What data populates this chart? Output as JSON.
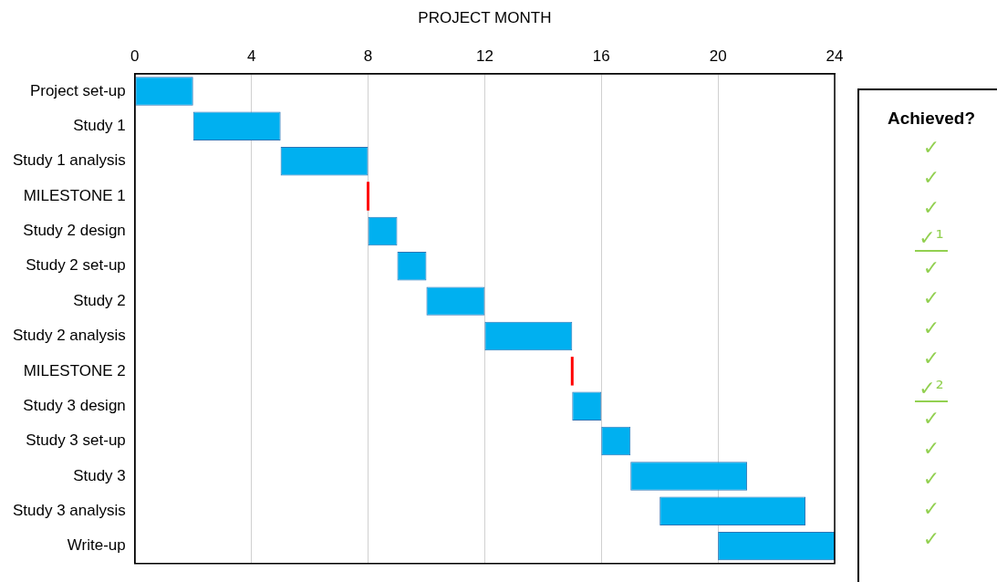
{
  "chart_data": [
    {
      "type": "bar",
      "orientation": "horizontal",
      "xlabel": "PROJECT MONTH",
      "categories": [
        "Project set-up",
        "Study 1",
        "Study 1 analysis",
        "MILESTONE 1",
        "Study 2 design",
        "Study 2 set-up",
        "Study 2",
        "Study 2 analysis",
        "MILESTONE 2",
        "Study 3 design",
        "Study 3 set-up",
        "Study 3",
        "Study 3 analysis",
        "Write-up"
      ],
      "base": [
        0,
        2,
        5,
        8,
        8,
        9,
        10,
        12,
        15,
        15,
        16,
        17,
        18,
        20
      ],
      "values": [
        2,
        3,
        3,
        0,
        1,
        1,
        2,
        3,
        0,
        1,
        1,
        4,
        5,
        4
      ],
      "colors": [
        "#00b0f0",
        "#00b0f0",
        "#00b0f0",
        "#ff0000",
        "#00b0f0",
        "#00b0f0",
        "#00b0f0",
        "#00b0f0",
        "#ff0000",
        "#00b0f0",
        "#00b0f0",
        "#00b0f0",
        "#00b0f0",
        "#00b0f0"
      ],
      "xlim": [
        0,
        24
      ],
      "xticks": [
        0,
        4,
        8,
        12,
        16,
        20,
        24
      ],
      "grid": "x",
      "legend": false
    },
    {
      "type": "other",
      "title": "Achieved?",
      "annotations": [
        "✓",
        "✓",
        "✓",
        "✓¹",
        "✓",
        "✓",
        "✓",
        "✓",
        "✓²",
        "✓",
        "✓",
        "✓",
        "✓",
        "✓"
      ]
    }
  ]
}
